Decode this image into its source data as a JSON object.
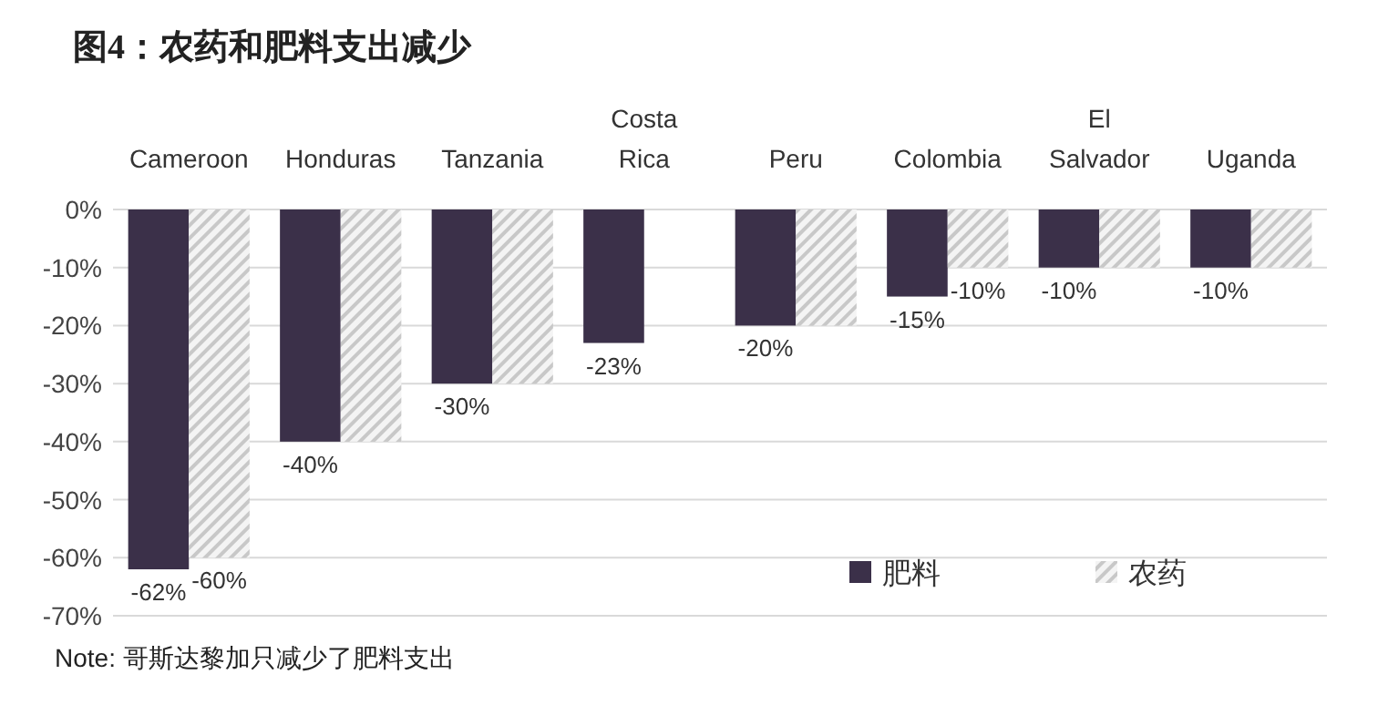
{
  "chart_data": {
    "type": "bar",
    "title": "图4：农药和肥料支出减少",
    "categories": [
      "Cameroon",
      "Honduras",
      "Tanzania",
      "Costa Rica",
      "Peru",
      "Colombia",
      "El Salvador",
      "Uganda"
    ],
    "series": [
      {
        "name": "肥料",
        "color": "#3b3049",
        "values": [
          -62,
          -40,
          -30,
          -23,
          -20,
          -15,
          -10,
          -10
        ],
        "value_labels": [
          "-62%",
          "-40%",
          "-30%",
          "-23%",
          "-20%",
          "-15%",
          "-10%",
          "-10%"
        ]
      },
      {
        "name": "农药",
        "color": "#c8c8c8",
        "values": [
          -60,
          -40,
          -30,
          0,
          -20,
          -10,
          -10,
          -10
        ],
        "value_labels": [
          "-60%",
          null,
          null,
          null,
          null,
          "-10%",
          null,
          null
        ]
      }
    ],
    "ylim": [
      -70,
      0
    ],
    "yticks": [
      {
        "value": 0,
        "label": "0%"
      },
      {
        "value": -10,
        "label": "-10%"
      },
      {
        "value": -20,
        "label": "-20%"
      },
      {
        "value": -30,
        "label": "-30%"
      },
      {
        "value": -40,
        "label": "-40%"
      },
      {
        "value": -50,
        "label": "-50%"
      },
      {
        "value": -60,
        "label": "-60%"
      },
      {
        "value": -70,
        "label": "-70%"
      }
    ],
    "grid": "y",
    "legend": "bottom",
    "annotations": [
      "Note: 哥斯达黎加只减少了肥料支出"
    ]
  }
}
